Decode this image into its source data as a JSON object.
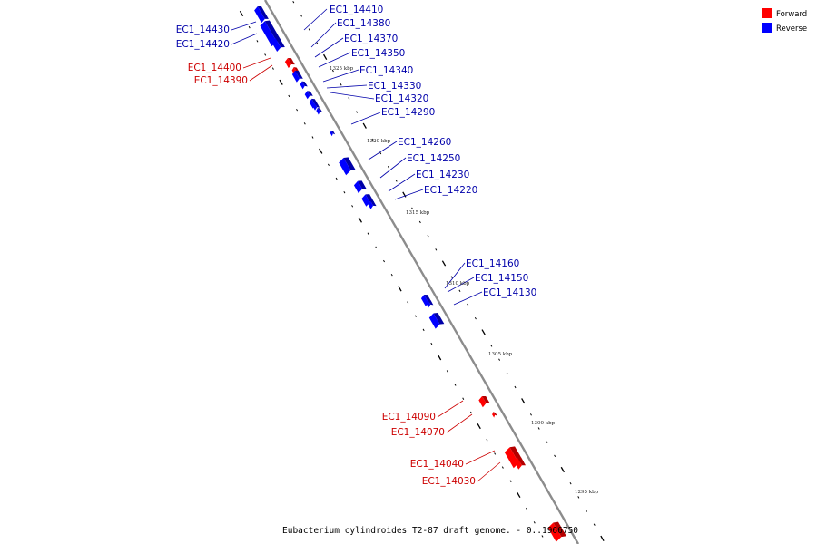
{
  "legend": {
    "forward": {
      "label": "Forward",
      "color": "#ff0000"
    },
    "reverse": {
      "label": "Reverse",
      "color": "#0000ff"
    }
  },
  "title": "Eubacterium cylindroides T2-87 draft genome. - 0..1966750",
  "colors": {
    "forward_dark": "#b40000",
    "reverse_dark": "#0000a8",
    "backbone": "#8c8c8c",
    "ticks": "#000000"
  },
  "scale_labels": [
    "1325 kbp",
    "1320 kbp",
    "1315 kbp",
    "1310 kbp",
    "1305 kbp",
    "1300 kbp",
    "1295 kbp"
  ],
  "genes": [
    {
      "name": "EC1_14430",
      "strand": "reverse"
    },
    {
      "name": "EC1_14420",
      "strand": "reverse"
    },
    {
      "name": "EC1_14410",
      "strand": "reverse"
    },
    {
      "name": "EC1_14400",
      "strand": "forward"
    },
    {
      "name": "EC1_14390",
      "strand": "forward"
    },
    {
      "name": "EC1_14380",
      "strand": "reverse"
    },
    {
      "name": "EC1_14370",
      "strand": "reverse"
    },
    {
      "name": "EC1_14350",
      "strand": "reverse"
    },
    {
      "name": "EC1_14340",
      "strand": "reverse"
    },
    {
      "name": "EC1_14330",
      "strand": "reverse"
    },
    {
      "name": "EC1_14320",
      "strand": "reverse"
    },
    {
      "name": "EC1_14290",
      "strand": "reverse"
    },
    {
      "name": "EC1_14260",
      "strand": "reverse"
    },
    {
      "name": "EC1_14250",
      "strand": "reverse"
    },
    {
      "name": "EC1_14230",
      "strand": "reverse"
    },
    {
      "name": "EC1_14220",
      "strand": "reverse"
    },
    {
      "name": "EC1_14160",
      "strand": "reverse"
    },
    {
      "name": "EC1_14150",
      "strand": "reverse"
    },
    {
      "name": "EC1_14130",
      "strand": "reverse"
    },
    {
      "name": "EC1_14090",
      "strand": "forward"
    },
    {
      "name": "EC1_14070",
      "strand": "forward"
    },
    {
      "name": "EC1_14040",
      "strand": "forward"
    },
    {
      "name": "EC1_14030",
      "strand": "forward"
    }
  ]
}
